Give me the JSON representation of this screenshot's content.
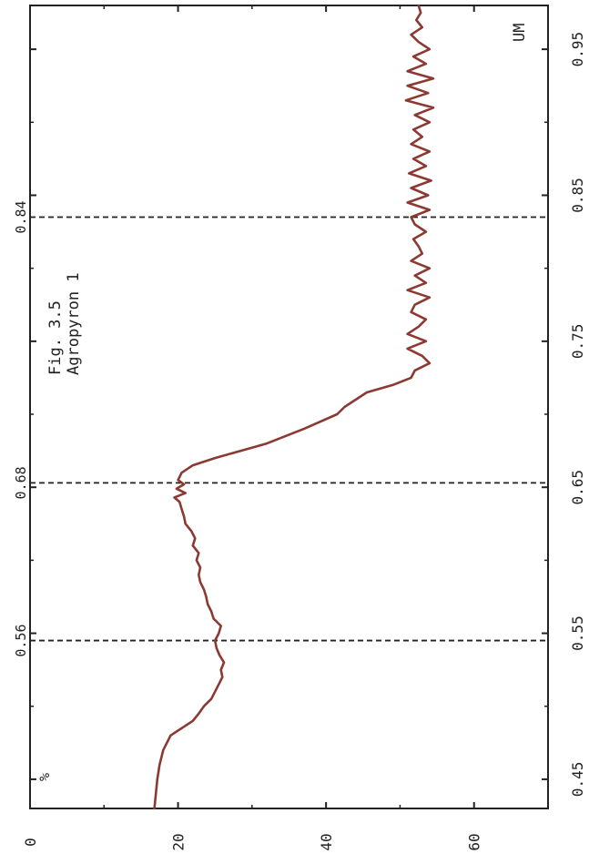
{
  "figure": {
    "title_line1": "Fig. 3.5",
    "title_line2": "Agropyron 1",
    "x_unit_label": "UM",
    "y_unit_label": "%"
  },
  "colors": {
    "curve": "#8b3a33",
    "axes": "#222222",
    "reference": "#222222",
    "background": "#ffffff"
  },
  "chart_data": {
    "type": "line",
    "title": "Fig. 3.5 Agropyron 1",
    "xlabel": "UM",
    "ylabel": "%",
    "xlim": [
      0.43,
      0.98
    ],
    "ylim": [
      0,
      70
    ],
    "x_ticks": [
      0.45,
      0.55,
      0.65,
      0.75,
      0.85,
      0.95
    ],
    "x_tick_labels": [
      "0.45",
      "0.55",
      "0.65",
      "0.75",
      "0.85",
      "0.95"
    ],
    "y_ticks": [
      0,
      20,
      40,
      60
    ],
    "y_tick_labels": [
      "0",
      "20",
      "40",
      "60"
    ],
    "reference_lines": [
      {
        "x": 0.545,
        "label": "0.56"
      },
      {
        "x": 0.653,
        "label": "0.68"
      },
      {
        "x": 0.835,
        "label": "0.84"
      }
    ],
    "grid": false,
    "rotation": "chart printed rotated 90 degrees counter-clockwise",
    "series": [
      {
        "x": [
          0.43,
          0.44,
          0.45,
          0.46,
          0.47,
          0.48,
          0.485,
          0.49,
          0.495,
          0.5,
          0.505,
          0.51,
          0.515,
          0.52,
          0.525,
          0.53,
          0.535,
          0.54,
          0.545,
          0.55,
          0.555,
          0.56,
          0.565,
          0.57,
          0.575,
          0.58,
          0.585,
          0.59,
          0.595,
          0.6,
          0.605,
          0.61,
          0.615,
          0.62,
          0.625,
          0.63,
          0.635,
          0.64,
          0.643,
          0.646,
          0.649,
          0.652,
          0.655,
          0.66,
          0.665,
          0.67,
          0.675,
          0.68,
          0.69,
          0.7,
          0.705,
          0.71,
          0.715,
          0.72,
          0.725,
          0.73,
          0.735,
          0.74,
          0.745,
          0.75,
          0.755,
          0.76,
          0.765,
          0.77,
          0.775,
          0.78,
          0.785,
          0.79,
          0.795,
          0.8,
          0.805,
          0.81,
          0.815,
          0.82,
          0.825,
          0.83,
          0.835,
          0.84,
          0.845,
          0.85,
          0.855,
          0.86,
          0.865,
          0.87,
          0.875,
          0.88,
          0.885,
          0.89,
          0.895,
          0.9,
          0.905,
          0.91,
          0.915,
          0.92,
          0.925,
          0.93,
          0.935,
          0.94,
          0.945,
          0.95,
          0.955,
          0.96,
          0.965,
          0.97,
          0.975,
          0.98
        ],
        "y": [
          16.8,
          17.0,
          17.2,
          17.5,
          18.0,
          19.0,
          20.5,
          22.0,
          22.8,
          23.5,
          24.5,
          25.0,
          25.5,
          26.0,
          25.8,
          26.2,
          25.6,
          25.2,
          25.0,
          25.5,
          25.8,
          24.8,
          24.5,
          24.0,
          23.8,
          23.5,
          23.0,
          22.8,
          23.0,
          22.5,
          22.8,
          22.0,
          22.3,
          21.8,
          21.0,
          20.8,
          20.5,
          20.2,
          19.5,
          21.0,
          19.8,
          20.8,
          20.0,
          20.5,
          22.0,
          25.0,
          28.5,
          32.0,
          37.0,
          41.5,
          42.5,
          44.0,
          45.5,
          49.0,
          51.5,
          52.0,
          54.0,
          53.0,
          51.0,
          53.5,
          51.0,
          52.5,
          53.5,
          51.5,
          52.0,
          54.0,
          51.0,
          53.5,
          52.0,
          54.0,
          51.5,
          53.0,
          52.5,
          51.8,
          53.5,
          52.0,
          51.5,
          54.0,
          51.0,
          53.8,
          51.5,
          54.2,
          51.2,
          53.5,
          51.8,
          54.0,
          51.5,
          53.0,
          51.8,
          54.0,
          52.0,
          54.5,
          50.8,
          53.8,
          51.0,
          54.5,
          51.0,
          53.5,
          51.8,
          54.0,
          52.5,
          51.5,
          53.0,
          52.2,
          52.8,
          52.5
        ]
      }
    ]
  }
}
